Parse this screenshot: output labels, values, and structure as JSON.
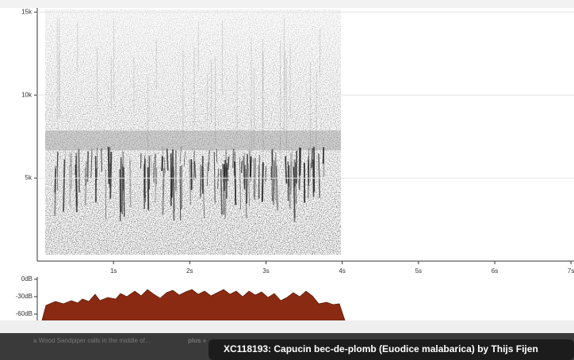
{
  "spectrogram": {
    "xlim": [
      0,
      7.04
    ],
    "ylim": [
      0,
      15250
    ],
    "xticks": [
      {
        "value": 1,
        "label": "1s"
      },
      {
        "value": 2,
        "label": "2s"
      },
      {
        "value": 3,
        "label": "3s"
      },
      {
        "value": 4,
        "label": "4s"
      },
      {
        "value": 5,
        "label": "5s"
      },
      {
        "value": 6,
        "label": "6s"
      },
      {
        "value": 7,
        "label": "7s"
      }
    ],
    "yticks": [
      {
        "value": 5000,
        "label": "5k"
      },
      {
        "value": 10000,
        "label": "10k"
      },
      {
        "value": 15000,
        "label": "15k"
      }
    ]
  },
  "amplitude": {
    "ylim": [
      -71,
      4
    ],
    "yticks": [
      {
        "value": 0,
        "label": "0dB"
      },
      {
        "value": -30,
        "label": "-30dB"
      },
      {
        "value": -60,
        "label": "-60dB"
      }
    ]
  },
  "remarks": {
    "text": "a Wood Sandpiper calls in the middle of...",
    "more": "plus »"
  },
  "caption": "XC118193: Capucin bec-de-plomb (Euodice malabarica) by Thijs Fijen"
}
